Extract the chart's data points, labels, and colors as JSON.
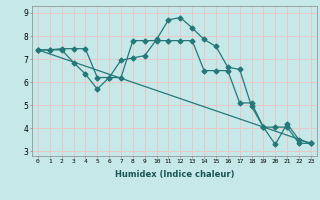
{
  "xlabel": "Humidex (Indice chaleur)",
  "xlim": [
    -0.5,
    23.5
  ],
  "ylim": [
    2.8,
    9.3
  ],
  "xticks": [
    0,
    1,
    2,
    3,
    4,
    5,
    6,
    7,
    8,
    9,
    10,
    11,
    12,
    13,
    14,
    15,
    16,
    17,
    18,
    19,
    20,
    21,
    22,
    23
  ],
  "yticks": [
    3,
    4,
    5,
    6,
    7,
    8,
    9
  ],
  "bg_color": "#c6e8e8",
  "grid_color": "#e8c8c8",
  "line_color": "#267878",
  "line1_x": [
    0,
    1,
    2,
    3,
    4,
    5,
    6,
    7,
    8,
    9,
    10,
    11,
    12,
    13,
    14,
    15,
    16,
    17,
    18,
    19,
    20,
    21,
    22,
    23
  ],
  "line1_y": [
    7.4,
    7.4,
    7.4,
    6.85,
    6.35,
    5.7,
    6.2,
    6.95,
    7.05,
    7.15,
    7.85,
    8.7,
    8.8,
    8.35,
    7.85,
    7.55,
    6.65,
    6.55,
    4.95,
    4.05,
    3.3,
    4.2,
    3.5,
    3.35
  ],
  "line2_x": [
    0,
    1,
    2,
    3,
    4,
    5,
    6,
    7,
    8,
    9,
    10,
    11,
    12,
    13,
    14,
    15,
    16,
    17,
    18,
    19,
    20,
    21,
    22,
    23
  ],
  "line2_y": [
    7.4,
    7.4,
    7.45,
    7.45,
    7.45,
    6.2,
    6.2,
    6.2,
    7.8,
    7.8,
    7.8,
    7.8,
    7.8,
    7.8,
    6.5,
    6.5,
    6.5,
    5.1,
    5.1,
    4.05,
    4.05,
    4.05,
    3.35,
    3.35
  ],
  "line3_x": [
    0,
    23
  ],
  "line3_y": [
    7.4,
    3.35
  ],
  "marker_size": 2.5,
  "lw": 0.9
}
